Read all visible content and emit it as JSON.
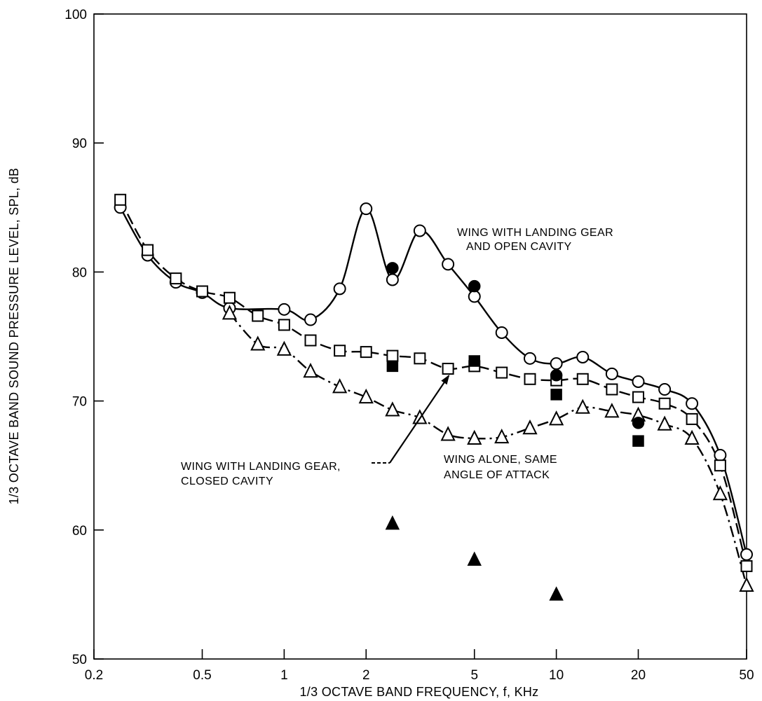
{
  "chart_data": {
    "type": "line",
    "x_scale": "log",
    "xlabel": "1/3 OCTAVE BAND FREQUENCY, f, KHz",
    "ylabel": "1/3 OCTAVE  BAND SOUND PRESSURE LEVEL, SPL, dB",
    "xlim": [
      0.2,
      50
    ],
    "ylim": [
      50,
      100
    ],
    "x_ticks": [
      {
        "value": 0.2,
        "label": "0.2"
      },
      {
        "value": 0.5,
        "label": "0.5"
      },
      {
        "value": 1,
        "label": "1"
      },
      {
        "value": 2,
        "label": "2"
      },
      {
        "value": 5,
        "label": "5"
      },
      {
        "value": 10,
        "label": "10"
      },
      {
        "value": 20,
        "label": "20"
      },
      {
        "value": 50,
        "label": "50"
      }
    ],
    "y_ticks": [
      {
        "value": 50,
        "label": "50"
      },
      {
        "value": 60,
        "label": "60"
      },
      {
        "value": 70,
        "label": "70"
      },
      {
        "value": 80,
        "label": "80"
      },
      {
        "value": 90,
        "label": "90"
      },
      {
        "value": 100,
        "label": "100"
      }
    ],
    "grid": false,
    "series": [
      {
        "marker": "open-circle",
        "line": "solid",
        "points": [
          [
            0.25,
            85.0
          ],
          [
            0.315,
            81.3
          ],
          [
            0.4,
            79.2
          ],
          [
            0.5,
            78.4
          ],
          [
            0.63,
            77.2
          ],
          [
            1.0,
            77.1
          ],
          [
            1.25,
            76.3
          ],
          [
            1.6,
            78.7
          ],
          [
            2.0,
            84.9
          ],
          [
            2.5,
            79.4
          ],
          [
            3.15,
            83.2
          ],
          [
            4.0,
            80.6
          ],
          [
            5.0,
            78.1
          ],
          [
            6.3,
            75.3
          ],
          [
            8.0,
            73.3
          ],
          [
            10.0,
            72.9
          ],
          [
            12.5,
            73.4
          ],
          [
            16.0,
            72.1
          ],
          [
            20.0,
            71.5
          ],
          [
            25.0,
            70.9
          ],
          [
            31.5,
            69.8
          ],
          [
            40.0,
            65.8
          ],
          [
            50.0,
            58.1
          ]
        ]
      },
      {
        "marker": "open-square",
        "line": "dashed",
        "points": [
          [
            0.25,
            85.6
          ],
          [
            0.315,
            81.7
          ],
          [
            0.4,
            79.5
          ],
          [
            0.5,
            78.5
          ],
          [
            0.63,
            78.0
          ],
          [
            0.8,
            76.6
          ],
          [
            1.0,
            75.9
          ],
          [
            1.25,
            74.7
          ],
          [
            1.6,
            73.9
          ],
          [
            2.0,
            73.8
          ],
          [
            2.5,
            73.5
          ],
          [
            3.15,
            73.3
          ],
          [
            4.0,
            72.5
          ],
          [
            5.0,
            72.7
          ],
          [
            6.3,
            72.2
          ],
          [
            8.0,
            71.7
          ],
          [
            10.0,
            71.6
          ],
          [
            12.5,
            71.7
          ],
          [
            16.0,
            70.9
          ],
          [
            20.0,
            70.3
          ],
          [
            25.0,
            69.8
          ],
          [
            31.5,
            68.6
          ],
          [
            40.0,
            65.0
          ],
          [
            50.0,
            57.2
          ]
        ]
      },
      {
        "marker": "open-triangle",
        "line": "dash-dot",
        "points": [
          [
            0.63,
            76.8
          ],
          [
            0.8,
            74.4
          ],
          [
            1.0,
            74.0
          ],
          [
            1.25,
            72.3
          ],
          [
            1.6,
            71.1
          ],
          [
            2.0,
            70.3
          ],
          [
            2.5,
            69.3
          ],
          [
            3.15,
            68.7
          ],
          [
            4.0,
            67.4
          ],
          [
            5.0,
            67.1
          ],
          [
            6.3,
            67.2
          ],
          [
            8.0,
            67.9
          ],
          [
            10.0,
            68.6
          ],
          [
            12.5,
            69.5
          ],
          [
            16.0,
            69.2
          ],
          [
            20.0,
            68.9
          ],
          [
            25.0,
            68.2
          ],
          [
            31.5,
            67.1
          ],
          [
            40.0,
            62.8
          ],
          [
            50.0,
            55.7
          ]
        ]
      },
      {
        "marker": "filled-circle",
        "line": "none",
        "points": [
          [
            2.5,
            80.3
          ],
          [
            5.0,
            78.9
          ],
          [
            10.0,
            72.0
          ],
          [
            20.0,
            68.3
          ]
        ]
      },
      {
        "marker": "filled-square",
        "line": "none",
        "points": [
          [
            2.5,
            72.7
          ],
          [
            5.0,
            73.1
          ],
          [
            10.0,
            70.5
          ],
          [
            20.0,
            66.9
          ]
        ]
      },
      {
        "marker": "filled-triangle",
        "line": "none",
        "points": [
          [
            2.5,
            60.5
          ],
          [
            5.0,
            57.7
          ],
          [
            10.0,
            55.0
          ]
        ]
      }
    ],
    "annotations": [
      {
        "lines": [
          "WING WITH LANDING GEAR",
          "AND OPEN CAVITY"
        ]
      },
      {
        "lines": [
          "WING WITH LANDING GEAR,",
          "CLOSED CAVITY"
        ],
        "arrow_to": [
          4.0,
          72.5
        ]
      },
      {
        "lines": [
          "WING ALONE, SAME",
          "ANGLE OF ATTACK"
        ]
      }
    ]
  }
}
